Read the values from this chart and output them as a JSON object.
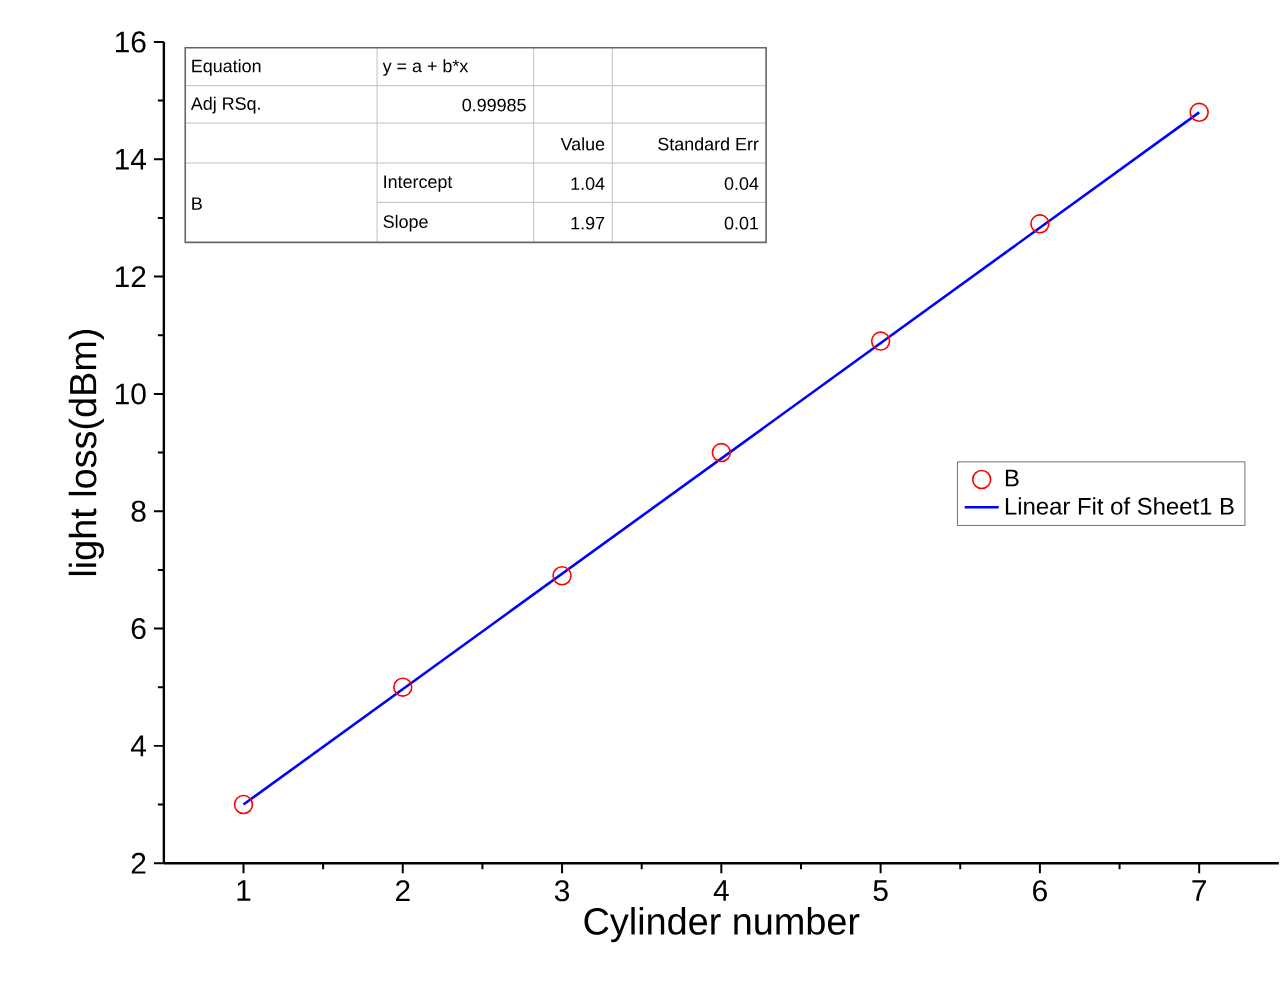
{
  "chart_data": {
    "type": "scatter",
    "xlabel": "Cylinder number",
    "ylabel": "light loss(dBm)",
    "xlim": [
      0.5,
      7.5
    ],
    "xticks": [
      1,
      2,
      3,
      4,
      5,
      6,
      7
    ],
    "ylim": [
      2,
      16
    ],
    "yticks": [
      2,
      4,
      6,
      8,
      10,
      12,
      14,
      16
    ],
    "legend": "right",
    "grid": false,
    "series": [
      {
        "name": "B",
        "type": "scatter",
        "marker": "circle",
        "color": "#ff0000",
        "x": [
          1,
          2,
          3,
          4,
          5,
          6,
          7
        ],
        "values": [
          3.0,
          5.0,
          6.9,
          9.0,
          10.9,
          12.9,
          14.8
        ]
      },
      {
        "name": "Linear Fit of Sheet1 B",
        "type": "line",
        "marker": "none",
        "line_style": "solid",
        "color": "#0000ff",
        "x": [
          1,
          7
        ],
        "values": [
          3.0,
          14.8
        ]
      }
    ],
    "annotations": [
      "Equation",
      "y = a + b*x",
      "Adj RSq.",
      "0.99985",
      "Value",
      "Standard Err",
      "B",
      "Intercept",
      "1.04",
      "0.04",
      "Slope",
      "1.97",
      "0.01"
    ]
  }
}
